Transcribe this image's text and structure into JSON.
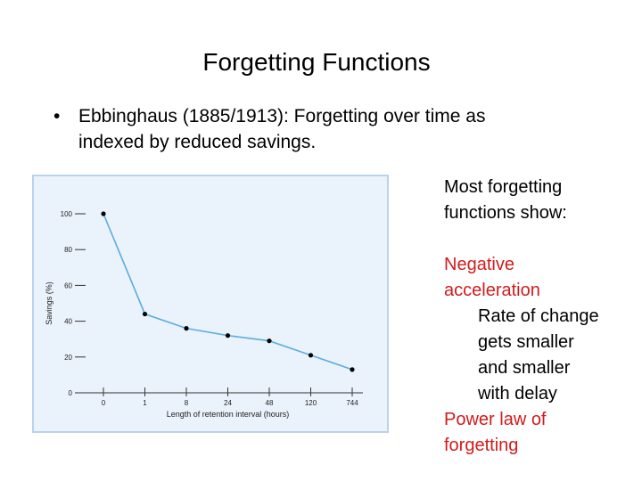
{
  "slide": {
    "title": "Forgetting Functions",
    "bullet_symbol": "•",
    "bullet_line1": "Ebbinghaus (1885/1913): Forgetting over time as",
    "bullet_line2": "indexed by reduced savings."
  },
  "side": {
    "intro_line1": "Most forgetting",
    "intro_line2": "functions show:",
    "point1_line1": "Negative",
    "point1_line2": "acceleration",
    "sub_line1": "Rate of change",
    "sub_line2": "gets smaller",
    "sub_line3": "and smaller",
    "sub_line4": "with delay",
    "point2_line1": "Power law of",
    "point2_line2": "forgetting",
    "accent_color": "#d11b1b"
  },
  "chart_data": {
    "type": "line",
    "title": "",
    "xlabel": "Length of retention interval (hours)",
    "ylabel": "Savings (%)",
    "categories": [
      "0",
      "1",
      "8",
      "24",
      "48",
      "120",
      "744"
    ],
    "values": [
      100,
      44,
      36,
      32,
      29,
      21,
      13
    ],
    "ylim": [
      0,
      100
    ],
    "y_ticks": [
      "0",
      "20",
      "40",
      "60",
      "80",
      "100"
    ],
    "grid": false,
    "legend": "none",
    "line_color": "#5aaee0",
    "point_color": "#000000",
    "background_color": "#eaf2fb"
  }
}
